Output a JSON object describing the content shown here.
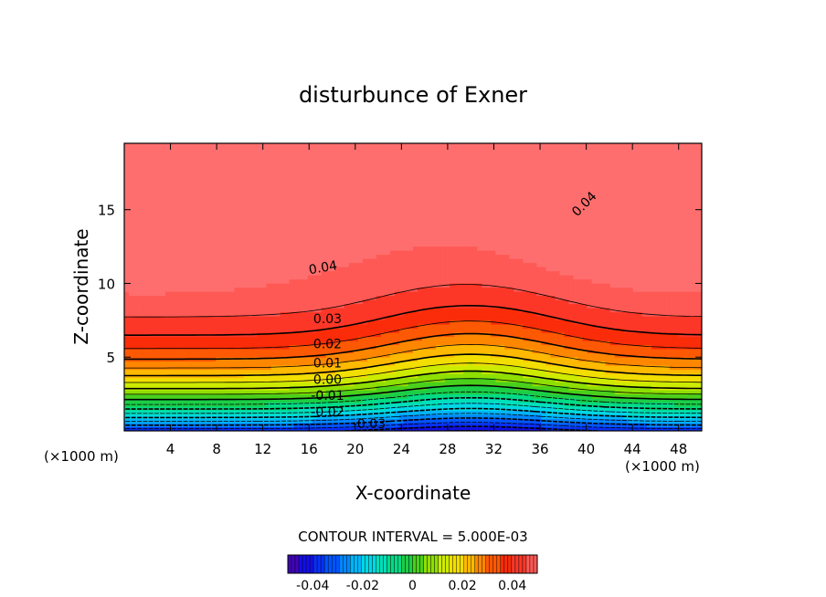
{
  "chart_data": {
    "type": "contour",
    "title": "disturbunce of Exner",
    "xlabel": "X-coordinate",
    "ylabel": "Z-coordinate",
    "x_unit_left": "(×1000 m)",
    "x_unit_right": "(×1000 m)",
    "xlim": [
      0,
      50
    ],
    "ylim": [
      0,
      19.5
    ],
    "x_ticks": [
      4,
      8,
      12,
      16,
      20,
      24,
      28,
      32,
      36,
      40,
      44,
      48
    ],
    "x_tick_labels": [
      "4",
      "8",
      "12",
      "16",
      "20",
      "24",
      "28",
      "32",
      "36",
      "40",
      "44",
      "48"
    ],
    "y_ticks": [
      5,
      10,
      15
    ],
    "y_tick_labels": [
      "5",
      "10",
      "15"
    ],
    "contour_interval_text": "CONTOUR INTERVAL = 5.000E-03",
    "contour_interval": 0.005,
    "value_range": [
      -0.05,
      0.05
    ],
    "field_description": "Exner disturbance: negative near ground, increasing with height; maxima ~0.045 near x=2-4 and x=46-48 at z~13; minimum ~-0.045 near x=30, z=0.5",
    "contour_labels": [
      {
        "text": "0.04",
        "x": 17.2,
        "z": 11.1,
        "angle": -10
      },
      {
        "text": "0.04",
        "x": 39.8,
        "z": 15.4,
        "angle": -45
      },
      {
        "text": "0.03",
        "x": 17.6,
        "z": 7.6,
        "angle": 0
      },
      {
        "text": "0.02",
        "x": 17.6,
        "z": 5.9,
        "angle": 0
      },
      {
        "text": "0.01",
        "x": 17.6,
        "z": 4.6,
        "angle": 0
      },
      {
        "text": "0.00",
        "x": 17.6,
        "z": 3.5,
        "angle": 0
      },
      {
        "text": "-0.01",
        "x": 17.6,
        "z": 2.4,
        "angle": 0
      },
      {
        "text": "-0.02",
        "x": 17.6,
        "z": 1.3,
        "angle": 0
      },
      {
        "text": "-0.03",
        "x": 21.2,
        "z": 0.5,
        "angle": 0
      }
    ],
    "colorbar": {
      "min": -0.05,
      "max": 0.05,
      "tick_values": [
        -0.04,
        -0.02,
        0,
        0.02,
        0.04
      ],
      "tick_labels": [
        "-0.04",
        "-0.02",
        "0",
        "0.02",
        "0.04"
      ]
    }
  }
}
